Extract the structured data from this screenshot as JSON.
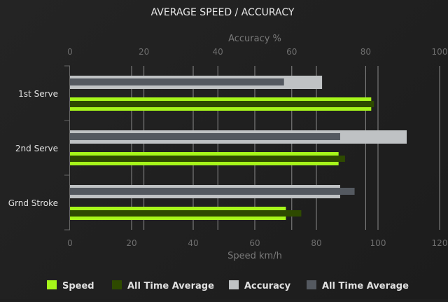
{
  "chart_data": {
    "type": "bar",
    "orientation": "horizontal",
    "title": "AVERAGE SPEED / ACCURACY",
    "categories": [
      "1st Serve",
      "2nd Serve",
      "Grnd Stroke"
    ],
    "x_bottom": {
      "label": "Speed km/h",
      "range": [
        0,
        120
      ],
      "ticks": [
        0,
        20,
        40,
        60,
        80,
        100,
        120
      ]
    },
    "x_top": {
      "label": "Accuracy %",
      "range": [
        0,
        100
      ],
      "ticks": [
        0,
        20,
        40,
        60,
        80,
        100
      ]
    },
    "grid": true,
    "legend_position": "bottom",
    "series": [
      {
        "name": "Speed",
        "axis": "bottom",
        "color": "#a6f61a",
        "values": [
          97.8,
          87.2,
          70.1
        ]
      },
      {
        "name": "All Time Average",
        "axis": "bottom",
        "color": "#2e4a00",
        "values": [
          98.7,
          89.3,
          75.1
        ]
      },
      {
        "name": "Accuracy",
        "axis": "top",
        "color": "#bfc2c4",
        "values": [
          68.2,
          91.1,
          73.1
        ]
      },
      {
        "name": "All Time Average",
        "axis": "top",
        "color": "#545960",
        "values": [
          57.9,
          73.1,
          77.0
        ]
      }
    ]
  }
}
